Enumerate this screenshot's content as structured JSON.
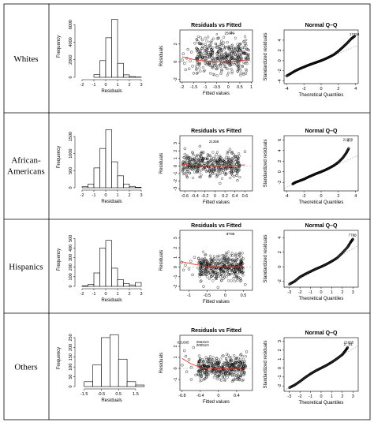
{
  "rows": [
    {
      "label": "Whites",
      "hist": {
        "type": "bar",
        "xlabel": "Residuals",
        "ylabel": "Frequency",
        "xlim": [
          -2.4,
          3.4
        ],
        "ylim": [
          0,
          7000
        ],
        "xticks": [
          -2,
          -1,
          0,
          1,
          2,
          3
        ],
        "yticks": [
          0,
          2000,
          4000,
          6000
        ],
        "bin_edges": [
          -1.0,
          -0.5,
          0,
          0.5,
          1.0,
          1.5,
          2.0,
          2.5,
          3.0
        ],
        "counts": [
          300,
          1900,
          4500,
          6600,
          1600,
          280,
          80,
          30
        ]
      },
      "rvf": {
        "type": "scatter",
        "title": "Residuals vs Fitted",
        "xlabel": "Fitted values",
        "ylabel": "Residuals",
        "xlim": [
          -2.1,
          1.05
        ],
        "ylim": [
          -2.3,
          3.6
        ],
        "xticks": [
          -2.0,
          -1.5,
          -1.0,
          -0.5,
          0.0,
          0.5,
          1.0
        ],
        "yticks": [
          -2,
          0,
          2
        ],
        "cloud": {
          "x": [
            -1.4,
            0.9
          ],
          "y": [
            -1.6,
            2.9
          ]
        },
        "sparse": [
          [
            -1.8,
            0.4
          ],
          [
            -1.9,
            -0.2
          ],
          [
            -1.6,
            1.1
          ],
          [
            -1.7,
            -0.8
          ],
          [
            -1.95,
            0.9
          ],
          [
            -1.5,
            -1.3
          ],
          [
            -1.65,
            0.1
          ],
          [
            -1.75,
            1.4
          ],
          [
            -1.45,
            2.1
          ],
          [
            -1.55,
            -0.5
          ],
          [
            -2.0,
            0.2
          ],
          [
            -1.85,
            -0.9
          ]
        ],
        "smooth": [
          [
            -2.0,
            0.55
          ],
          [
            -1.5,
            0.25
          ],
          [
            -1.0,
            0.08
          ],
          [
            -0.5,
            0.0
          ],
          [
            0.0,
            0.0
          ],
          [
            0.5,
            0.08
          ],
          [
            0.9,
            0.3
          ]
        ],
        "outliers": [
          {
            "x": 0.05,
            "y": 3.1,
            "label": "25699"
          },
          {
            "x": 0.2,
            "y": 3.15,
            "label": "2..."
          },
          {
            "x": -0.5,
            "y": 3.0,
            "label": "o"
          }
        ]
      },
      "qq": {
        "type": "line",
        "title": "Normal Q–Q",
        "xlabel": "Theoretical Quantiles",
        "ylabel": "Standardized residuals",
        "xlim": [
          -4.3,
          4.3
        ],
        "ylim": [
          -4.5,
          6.0
        ],
        "xticks": [
          -4,
          -2,
          0,
          2,
          4
        ],
        "yticks": [
          -4,
          -2,
          0,
          2,
          4
        ],
        "quantiles": [
          [
            -4,
            -3.0
          ],
          [
            -3.5,
            -2.5
          ],
          [
            -3,
            -2.0
          ],
          [
            -2.5,
            -1.6
          ],
          [
            -2,
            -1.25
          ],
          [
            -1.5,
            -0.9
          ],
          [
            -1,
            -0.6
          ],
          [
            -0.5,
            -0.3
          ],
          [
            0,
            0
          ],
          [
            0.5,
            0.35
          ],
          [
            1,
            0.75
          ],
          [
            1.5,
            1.2
          ],
          [
            2,
            1.85
          ],
          [
            2.5,
            2.6
          ],
          [
            3,
            3.4
          ],
          [
            3.5,
            4.3
          ],
          [
            3.9,
            4.8
          ]
        ],
        "refline": [
          [
            -4.3,
            -3.0
          ],
          [
            4.3,
            3.0
          ]
        ],
        "outliers": [
          {
            "x": 3.85,
            "y": 4.95,
            "label": "17458"
          }
        ]
      }
    },
    {
      "label": "African-Americans",
      "label_lines": [
        "African-",
        "Americans"
      ],
      "hist": {
        "type": "bar",
        "xlabel": "Residuals",
        "ylabel": "Frequency",
        "xlim": [
          -2.4,
          3.4
        ],
        "ylim": [
          0,
          1800
        ],
        "xticks": [
          -2,
          -1,
          0,
          1,
          2,
          3
        ],
        "yticks": [
          0,
          500,
          1000,
          1500
        ],
        "bin_edges": [
          -2.0,
          -1.5,
          -1.0,
          -0.5,
          0,
          0.5,
          1.0,
          1.5,
          2.0,
          2.5,
          3.0
        ],
        "counts": [
          30,
          110,
          580,
          1150,
          1700,
          760,
          350,
          110,
          40,
          15
        ]
      },
      "rvf": {
        "type": "scatter",
        "title": "Residuals vs Fitted",
        "xlabel": "Fitted values",
        "ylabel": "Residuals",
        "xlim": [
          -0.7,
          0.75
        ],
        "ylim": [
          -3.3,
          4.0
        ],
        "xticks": [
          -0.6,
          -0.4,
          -0.2,
          0.0,
          0.2,
          0.4,
          0.6
        ],
        "yticks": [
          -3,
          -2,
          -1,
          0,
          1,
          2,
          3
        ],
        "cloud": {
          "x": [
            -0.65,
            0.5
          ],
          "y": [
            -1.7,
            1.9
          ]
        },
        "sparse": [
          [
            -0.6,
            2.3
          ],
          [
            0.6,
            1.9
          ],
          [
            0.45,
            -1.9
          ],
          [
            -0.55,
            -1.5
          ],
          [
            -0.3,
            2.6
          ],
          [
            0.1,
            -2.3
          ],
          [
            -0.45,
            1.8
          ],
          [
            0.3,
            2.2
          ]
        ],
        "smooth": [
          [
            -0.65,
            0.2
          ],
          [
            -0.3,
            0.0
          ],
          [
            0.0,
            0.0
          ],
          [
            0.3,
            0.0
          ],
          [
            0.6,
            0.15
          ]
        ],
        "outliers": [
          {
            "x": -0.02,
            "y": 3.05,
            "label": "21358"
          }
        ]
      },
      "qq": {
        "type": "line",
        "title": "Normal Q–Q",
        "xlabel": "Theoretical Quantiles",
        "ylabel": "Standardized residuals",
        "xlim": [
          -4.3,
          4.3
        ],
        "ylim": [
          -3.6,
          6.8
        ],
        "xticks": [
          -4,
          -2,
          0,
          2,
          4
        ],
        "yticks": [
          -2,
          0,
          2,
          4,
          6
        ],
        "quantiles": [
          [
            -3.3,
            -2.3
          ],
          [
            -3,
            -2.0
          ],
          [
            -2.5,
            -1.7
          ],
          [
            -2,
            -1.4
          ],
          [
            -1.5,
            -1.0
          ],
          [
            -1,
            -0.65
          ],
          [
            -0.5,
            -0.3
          ],
          [
            0,
            0
          ],
          [
            0.5,
            0.35
          ],
          [
            1,
            0.75
          ],
          [
            1.5,
            1.2
          ],
          [
            2,
            1.8
          ],
          [
            2.5,
            2.6
          ],
          [
            2.9,
            3.5
          ],
          [
            3.2,
            4.4
          ]
        ],
        "refline": [
          [
            -4.3,
            -3.1
          ],
          [
            4.3,
            3.1
          ]
        ],
        "outliers": [
          {
            "x": 3.1,
            "y": 5.8,
            "label": "21358"
          },
          {
            "x": 3.3,
            "y": 5.7,
            "label": "6..."
          }
        ]
      }
    },
    {
      "label": "Hispanics",
      "hist": {
        "type": "bar",
        "xlabel": "Residuals",
        "ylabel": "Frequency",
        "xlim": [
          -2.4,
          3.4
        ],
        "ylim": [
          0,
          560
        ],
        "xticks": [
          -2,
          -1,
          0,
          1,
          2,
          3
        ],
        "yticks": [
          0,
          100,
          200,
          300,
          400,
          500
        ],
        "bin_edges": [
          -2.0,
          -1.5,
          -1.0,
          -0.5,
          0,
          0.5,
          1.0,
          1.5,
          2.0,
          2.5,
          3.0
        ],
        "counts": [
          5,
          20,
          140,
          400,
          480,
          190,
          70,
          30,
          15,
          40
        ]
      },
      "rvf": {
        "type": "scatter",
        "title": "Residuals vs Fitted",
        "xlabel": "Fitted values",
        "ylabel": "Residuals",
        "xlim": [
          -1.25,
          0.75
        ],
        "ylim": [
          -2.4,
          3.8
        ],
        "xticks": [
          -1.0,
          -0.5,
          0.0,
          0.5
        ],
        "yticks": [
          -2,
          -1,
          0,
          1,
          2,
          3
        ],
        "cloud": {
          "x": [
            -0.75,
            0.5
          ],
          "y": [
            -1.5,
            1.6
          ]
        },
        "sparse": [
          [
            -1.2,
            0.5
          ],
          [
            -1.1,
            0.2
          ],
          [
            -1.0,
            -0.2
          ],
          [
            -0.95,
            0.6
          ],
          [
            -0.85,
            1.0
          ],
          [
            -0.9,
            -0.8
          ],
          [
            -1.15,
            -0.3
          ],
          [
            0.55,
            -1.8
          ],
          [
            -0.6,
            -2.0
          ],
          [
            -0.2,
            -2.1
          ]
        ],
        "smooth": [
          [
            -1.2,
            0.55
          ],
          [
            -0.8,
            0.25
          ],
          [
            -0.4,
            0.05
          ],
          [
            0.0,
            0.0
          ],
          [
            0.5,
            0.05
          ]
        ],
        "outliers": [
          {
            "x": 0.15,
            "y": 3.3,
            "label": "7788"
          },
          {
            "x": 0.05,
            "y": 3.3,
            "label": "o"
          }
        ]
      },
      "qq": {
        "type": "line",
        "title": "Normal Q–Q",
        "xlabel": "Theoretical Quantiles",
        "ylabel": "Standardized residuals",
        "xlim": [
          -3.5,
          3.5
        ],
        "ylim": [
          -2.8,
          5.0
        ],
        "xticks": [
          -3,
          -2,
          -1,
          0,
          1,
          2,
          3
        ],
        "yticks": [
          -2,
          0,
          2,
          4
        ],
        "quantiles": [
          [
            -3.0,
            -2.4
          ],
          [
            -2.5,
            -2.0
          ],
          [
            -2,
            -1.4
          ],
          [
            -1.5,
            -1.0
          ],
          [
            -1,
            -0.65
          ],
          [
            -0.5,
            -0.3
          ],
          [
            0,
            0
          ],
          [
            0.5,
            0.35
          ],
          [
            1,
            0.75
          ],
          [
            1.5,
            1.2
          ],
          [
            2,
            1.9
          ],
          [
            2.5,
            2.7
          ],
          [
            2.8,
            3.4
          ],
          [
            3.0,
            3.8
          ]
        ],
        "refline": [
          [
            -3.5,
            -2.9
          ],
          [
            3.5,
            2.9
          ]
        ],
        "outliers": [
          {
            "x": 2.95,
            "y": 4.2,
            "label": "7788"
          },
          {
            "x": 3.15,
            "y": 4.15,
            "label": "..."
          }
        ]
      }
    },
    {
      "label": "Others",
      "hist": {
        "type": "bar",
        "xlabel": "Residuals",
        "ylabel": "Frequency",
        "xlim": [
          -1.9,
          2.1
        ],
        "ylim": [
          0,
          290
        ],
        "xticks": [
          -1.5,
          -0.5,
          0.5,
          1.5
        ],
        "yticks": [
          0,
          50,
          100,
          150,
          200,
          250
        ],
        "bin_edges": [
          -1.5,
          -1.0,
          -0.5,
          0,
          0.5,
          1.0,
          1.5,
          2.0
        ],
        "counts": [
          25,
          110,
          250,
          265,
          140,
          25,
          8
        ]
      },
      "rvf": {
        "type": "scatter",
        "title": "Residuals vs Fitted",
        "xlabel": "Fitted values",
        "ylabel": "Residuals",
        "xlim": [
          -0.85,
          0.75
        ],
        "ylim": [
          -2.0,
          3.0
        ],
        "xticks": [
          -0.8,
          -0.4,
          0.0,
          0.4
        ],
        "yticks": [
          -1,
          0,
          1,
          2
        ],
        "cloud": {
          "x": [
            -0.45,
            0.6
          ],
          "y": [
            -1.2,
            1.3
          ]
        },
        "sparse": [
          [
            -0.75,
            1.6
          ],
          [
            -0.7,
            -0.3
          ],
          [
            -0.65,
            0.8
          ],
          [
            -0.6,
            -1.0
          ],
          [
            -0.8,
            0.3
          ],
          [
            -0.55,
            1.9
          ],
          [
            -0.5,
            -0.6
          ],
          [
            -0.72,
            1.1
          ],
          [
            0.62,
            1.5
          ],
          [
            -0.6,
            0.1
          ]
        ],
        "smooth": [
          [
            -0.8,
            0.9
          ],
          [
            -0.6,
            0.4
          ],
          [
            -0.4,
            0.1
          ],
          [
            -0.2,
            0.0
          ],
          [
            0.2,
            -0.05
          ],
          [
            0.6,
            0.05
          ]
        ],
        "outliers": [
          {
            "x": -0.78,
            "y": 2.25,
            "label": "021695"
          },
          {
            "x": -0.35,
            "y": 2.3,
            "label": "25631O"
          },
          {
            "x": -0.35,
            "y": 2.0,
            "label": "20051O"
          }
        ]
      },
      "qq": {
        "type": "line",
        "title": "Normal Q–Q",
        "xlabel": "Theoretical Quantiles",
        "ylabel": "Standardized residuals",
        "xlim": [
          -3.5,
          3.5
        ],
        "ylim": [
          -2.6,
          3.4
        ],
        "xticks": [
          -3,
          -2,
          -1,
          0,
          1,
          2,
          3
        ],
        "yticks": [
          -2,
          -1,
          0,
          1,
          2,
          3
        ],
        "quantiles": [
          [
            -3.0,
            -2.2
          ],
          [
            -2.5,
            -1.9
          ],
          [
            -2,
            -1.5
          ],
          [
            -1.5,
            -1.05
          ],
          [
            -1,
            -0.65
          ],
          [
            -0.5,
            -0.3
          ],
          [
            0,
            0
          ],
          [
            0.5,
            0.3
          ],
          [
            1,
            0.65
          ],
          [
            1.5,
            1.05
          ],
          [
            2,
            1.5
          ],
          [
            2.3,
            1.95
          ],
          [
            2.5,
            2.3
          ]
        ],
        "refline": [
          [
            -3.5,
            -2.5
          ],
          [
            3.5,
            2.5
          ]
        ],
        "outliers": [
          {
            "x": 2.6,
            "y": 2.75,
            "label": "21695"
          },
          {
            "x": 2.55,
            "y": 2.5,
            "label": "2...01"
          }
        ]
      }
    }
  ]
}
